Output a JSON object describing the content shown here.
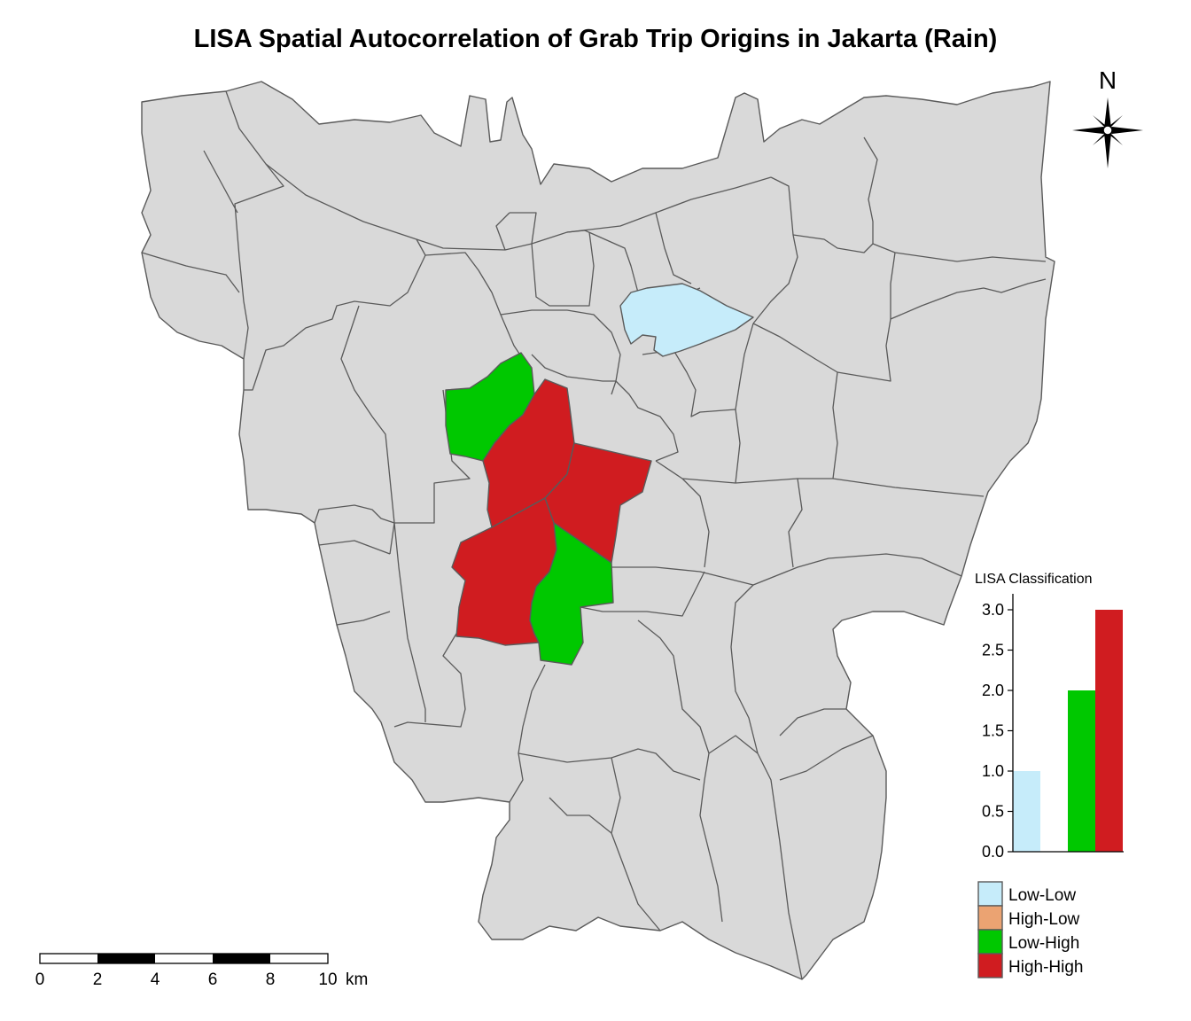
{
  "title": "LISA Spatial Autocorrelation of Grab Trip Origins in Jakarta (Rain)",
  "north_arrow": {
    "label": "N",
    "icon": "compass-rose-icon"
  },
  "colors": {
    "background": "#d9d9d9",
    "boundary": "#5a5a5a",
    "Low-Low": "#c6ecfa",
    "High-Low": "#eba372",
    "Low-High": "#00c800",
    "High-High": "#d01c20"
  },
  "legend": {
    "title": "LISA Classification",
    "items": [
      {
        "label": "Low-Low",
        "color": "#c6ecfa"
      },
      {
        "label": "High-Low",
        "color": "#eba372"
      },
      {
        "label": "Low-High",
        "color": "#00c800"
      },
      {
        "label": "High-High",
        "color": "#d01c20"
      }
    ]
  },
  "chart_data": {
    "type": "bar",
    "title": "LISA Classification",
    "categories": [
      "Low-Low",
      "High-Low",
      "Low-High",
      "High-High"
    ],
    "values": [
      1,
      0,
      2,
      3
    ],
    "ylim": [
      0,
      3
    ],
    "yticks": [
      "0.0",
      "0.5",
      "1.0",
      "1.5",
      "2.0",
      "2.5",
      "3.0"
    ],
    "grid": false
  },
  "scale_bar": {
    "ticks": [
      "0",
      "2",
      "4",
      "6",
      "8",
      "10"
    ],
    "unit": "km"
  }
}
